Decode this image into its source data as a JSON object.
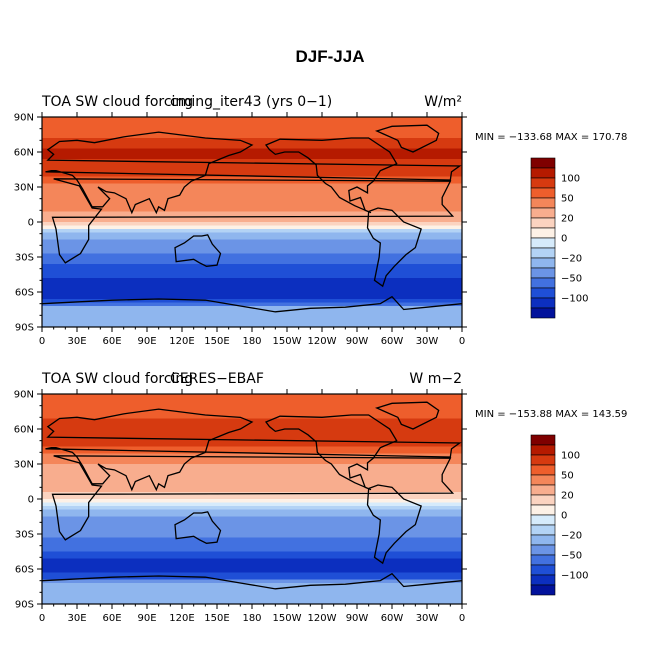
{
  "figure": {
    "title": "DJF-JJA"
  },
  "lon_ticks": [
    "0",
    "30E",
    "60E",
    "90E",
    "120E",
    "150E",
    "180",
    "150W",
    "120W",
    "90W",
    "60W",
    "30W",
    "0"
  ],
  "lat_ticks": [
    "90N",
    "60N",
    "30N",
    "0",
    "30S",
    "60S",
    "90S"
  ],
  "colorbar": {
    "labels": [
      "100",
      "50",
      "20",
      "0",
      "−20",
      "−50",
      "−100"
    ],
    "colors": [
      "#7f0000",
      "#b51a00",
      "#d63a10",
      "#ee5e2c",
      "#f4865a",
      "#f8ad8e",
      "#fbd3c0",
      "#fdf1e6",
      "#d6ebfb",
      "#b3d3f5",
      "#8fb6ee",
      "#6b94e6",
      "#4271e0",
      "#1f4fd6",
      "#0c2fbf",
      "#02129b"
    ]
  },
  "chart_data": [
    {
      "type": "heatmap",
      "title_left": "TOA SW cloud forcing",
      "title_center": "cming_iter43 (yrs 0−1)",
      "units": "W/m²",
      "stats": "MIN = −133.68  MAX = 170.78",
      "min": -133.68,
      "max": 170.78,
      "xlim": [
        0,
        360
      ],
      "ylim": [
        -90,
        90
      ],
      "contour_levels": [
        -100,
        -50,
        -20,
        0,
        20,
        50,
        100
      ],
      "lat_band_means": [
        {
          "lat": 75,
          "value": 40
        },
        {
          "lat": 60,
          "value": 80
        },
        {
          "lat": 45,
          "value": 60
        },
        {
          "lat": 30,
          "value": 30
        },
        {
          "lat": 15,
          "value": 30
        },
        {
          "lat": 0,
          "value": 10
        },
        {
          "lat": -15,
          "value": -20
        },
        {
          "lat": -30,
          "value": -40
        },
        {
          "lat": -45,
          "value": -60
        },
        {
          "lat": -60,
          "value": -100
        },
        {
          "lat": -75,
          "value": -10
        }
      ]
    },
    {
      "type": "heatmap",
      "title_left": "TOA SW cloud forcing",
      "title_center": "CERES−EBAF",
      "units": "W m−2",
      "stats": "MIN = −153.88  MAX = 143.59",
      "min": -153.88,
      "max": 143.59,
      "xlim": [
        0,
        360
      ],
      "ylim": [
        -90,
        90
      ],
      "contour_levels": [
        -100,
        -50,
        -20,
        0,
        20,
        50,
        100
      ],
      "lat_band_means": [
        {
          "lat": 75,
          "value": 40
        },
        {
          "lat": 60,
          "value": 70
        },
        {
          "lat": 45,
          "value": 50
        },
        {
          "lat": 30,
          "value": 20
        },
        {
          "lat": 15,
          "value": 20
        },
        {
          "lat": 0,
          "value": 5
        },
        {
          "lat": -15,
          "value": -20
        },
        {
          "lat": -30,
          "value": -30
        },
        {
          "lat": -45,
          "value": -50
        },
        {
          "lat": -60,
          "value": -90
        },
        {
          "lat": -75,
          "value": -10
        }
      ]
    }
  ]
}
